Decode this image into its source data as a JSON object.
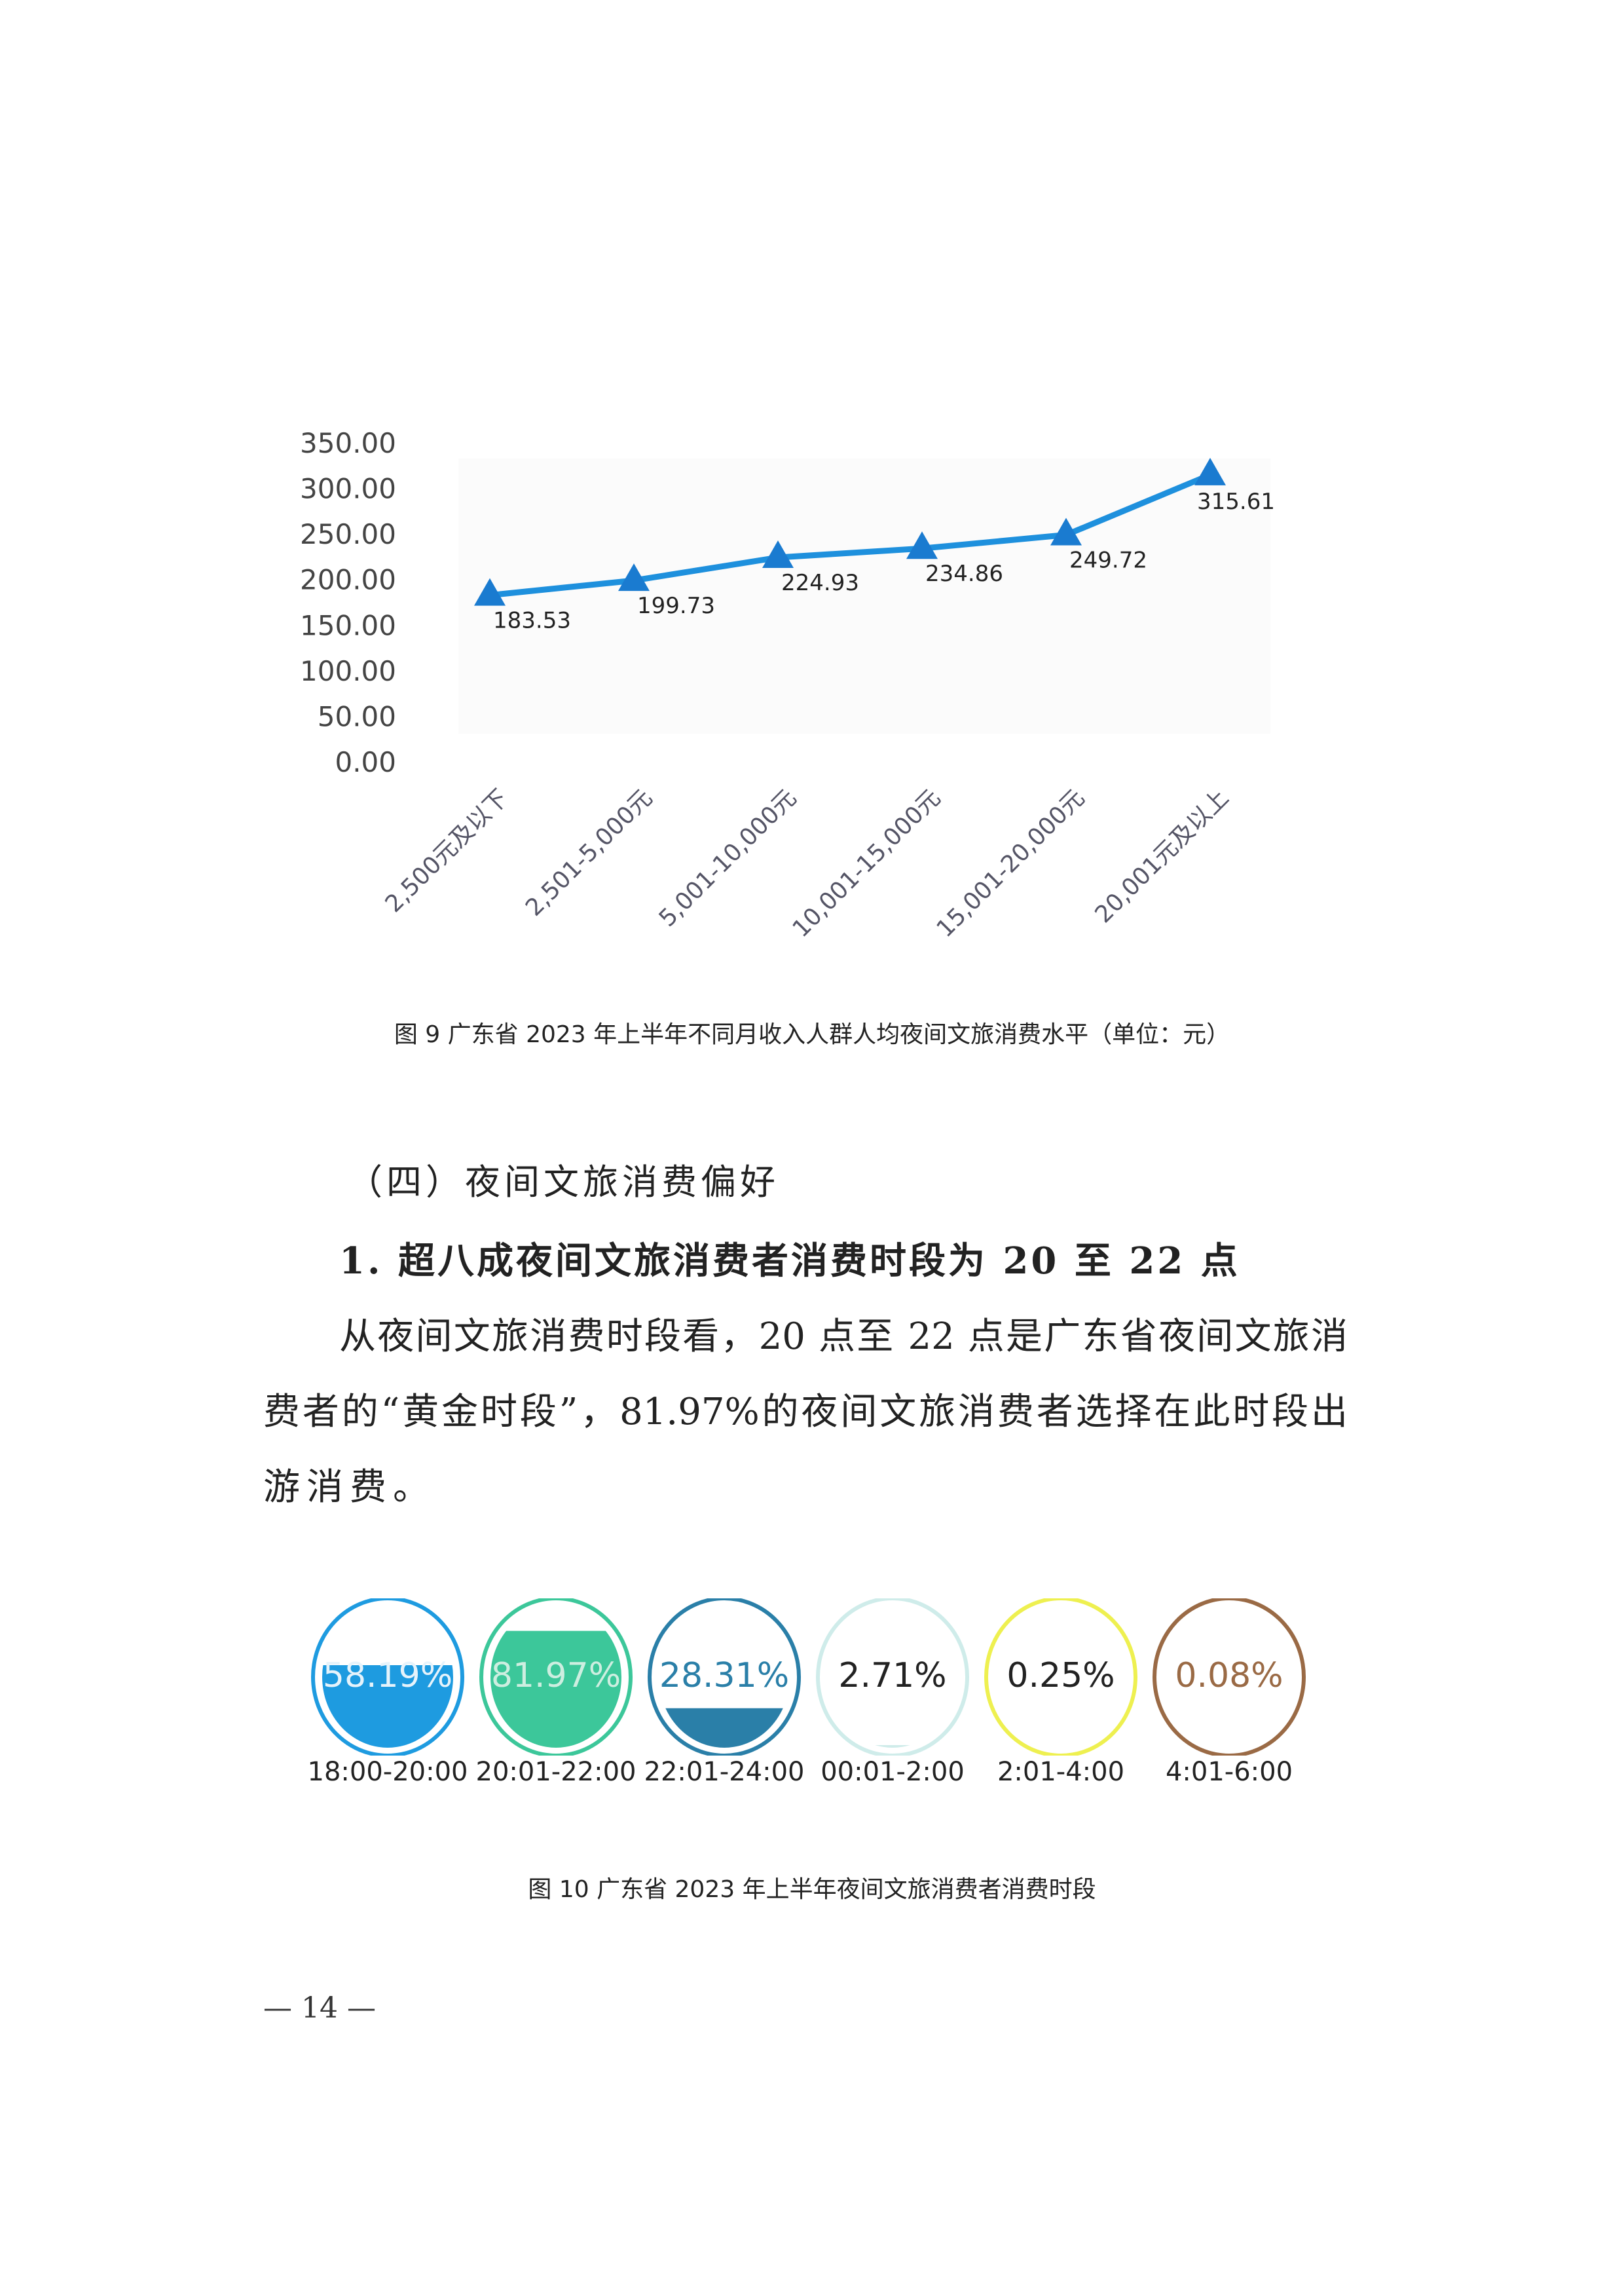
{
  "chart_data": [
    {
      "type": "line",
      "title": "图 9 广东省 2023 年上半年不同月收入人群人均夜间文旅消费水平（单位：元）",
      "categories": [
        "2,500元及以下",
        "2,501-5,000元",
        "5,001-10,000元",
        "10,001-15,000元",
        "15,001-20,000元",
        "20,001元及以上"
      ],
      "values": [
        183.53,
        199.73,
        224.93,
        234.86,
        249.72,
        315.61
      ],
      "data_labels": [
        "183.53",
        "199.73",
        "224.93",
        "234.86",
        "249.72",
        "315.61"
      ],
      "ylim": [
        0,
        350
      ],
      "yticks": [
        "0.00",
        "50.00",
        "100.00",
        "150.00",
        "200.00",
        "250.00",
        "300.00",
        "350.00"
      ],
      "marker": "triangle",
      "grid": false,
      "colors": {
        "line": "#1e90dd",
        "marker": "#1a7bd0"
      }
    },
    {
      "type": "gauge",
      "title": "图 10 广东省 2023 年上半年夜间文旅消费者消费时段",
      "categories": [
        "18:00-20:00",
        "20:01-22:00",
        "22:01-24:00",
        "00:01-2:00",
        "2:01-4:00",
        "4:01-6:00"
      ],
      "values": [
        58.19,
        81.97,
        28.31,
        2.71,
        0.25,
        0.08
      ],
      "labels": [
        "58.19%",
        "81.97%",
        "28.31%",
        "2.71%",
        "0.25%",
        "0.08%"
      ],
      "colors": [
        "#1e9be0",
        "#3cc79a",
        "#2a7fa8",
        "#cfecea",
        "#eef050",
        "#9a6a45"
      ],
      "text_colors": [
        "#e6f3fb",
        "#cdeee0",
        "#2a7fa8",
        "#222222",
        "#222222",
        "#9a6a45"
      ]
    }
  ],
  "section": {
    "heading": "（四）夜间文旅消费偏好",
    "subheading": "1. 超八成夜间文旅消费者消费时段为 20 至 22 点",
    "body_lines": [
      "从夜间文旅消费时段看，20 点至 22 点是广东省夜间文旅消",
      "费者的“黄金时段”，81.97%的夜间文旅消费者选择在此时段出",
      "游消费。"
    ]
  },
  "page_number": "— 14 —"
}
